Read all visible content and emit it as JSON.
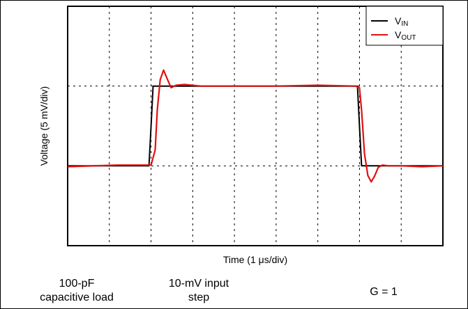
{
  "chart_data": {
    "type": "line",
    "xlabel": "Time (1 μs/div)",
    "ylabel": "Voltage (5 mV/div)",
    "x_unit": "μs",
    "y_unit": "mV",
    "xlim": [
      0,
      9
    ],
    "ylim": [
      -10,
      20
    ],
    "grid": true,
    "legend_position": "top-right",
    "series": [
      {
        "name": "VIN",
        "color": "#000000",
        "x": [
          0,
          1.95,
          2.0,
          2.05,
          2.3,
          3.5,
          5.0,
          6.5,
          6.95,
          7.0,
          7.05,
          7.3,
          8.5,
          9.0
        ],
        "y": [
          0.0,
          0.0,
          5.0,
          10.0,
          10.0,
          10.0,
          10.0,
          10.0,
          10.0,
          5.0,
          0.0,
          0.0,
          0.0,
          0.0
        ]
      },
      {
        "name": "VOUT",
        "color": "#e01010",
        "x": [
          0,
          1.2,
          2.0,
          2.1,
          2.15,
          2.22,
          2.3,
          2.38,
          2.48,
          2.6,
          2.8,
          3.2,
          4.0,
          5.0,
          6.0,
          6.9,
          7.0,
          7.05,
          7.12,
          7.2,
          7.28,
          7.36,
          7.45,
          7.55,
          7.7,
          8.0,
          8.5,
          9.0
        ],
        "y": [
          -0.1,
          0.1,
          0.1,
          2.0,
          7.0,
          10.8,
          12.0,
          11.0,
          9.8,
          10.1,
          10.2,
          10.0,
          10.0,
          10.0,
          10.1,
          10.0,
          9.8,
          7.0,
          1.5,
          -1.2,
          -2.0,
          -1.3,
          -0.2,
          0.1,
          0.0,
          0.0,
          -0.1,
          0.0
        ]
      }
    ]
  },
  "legend": {
    "items": [
      {
        "main": "V",
        "sub": "IN",
        "color": "#000000"
      },
      {
        "main": "V",
        "sub": "OUT",
        "color": "#e01010"
      }
    ]
  },
  "notes": {
    "load_line1": "100-pF",
    "load_line2": "capacitive load",
    "step_line1": "10-mV input",
    "step_line2": "step",
    "gain": "G = 1"
  }
}
